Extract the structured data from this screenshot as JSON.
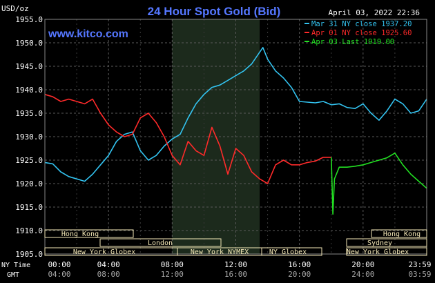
{
  "header": {
    "ylabel": "USD/oz",
    "title": "24 Hour Spot Gold (Bid)",
    "timestamp": "April 03, 2022 22:36",
    "watermark": "www.kitco.com"
  },
  "legend": [
    {
      "text": "Mar 31 NY close 1937.20",
      "color": "#33c3f0"
    },
    {
      "text": "Apr 01 NY close 1925.60",
      "color": "#ff2a2a"
    },
    {
      "text": "Apr 03 Last 1919.00",
      "color": "#22e022"
    }
  ],
  "axis": {
    "row1_label": "NY Time",
    "row2_label": "GMT",
    "ny_ticks": [
      "00:00",
      "04:00",
      "08:00",
      "12:00",
      "16:00",
      "20:00",
      "23:59"
    ],
    "gmt_ticks": [
      "04:00",
      "08:00",
      "12:00",
      "16:00",
      "20:00",
      "24:00",
      "03:59"
    ]
  },
  "markets": {
    "hong_kong_left": "Hong Kong",
    "london": "London",
    "new_york_globex_left": "New York Globex",
    "new_york_nymex": "New York NYMEX",
    "ny_globex": "NY Globex",
    "hong_kong_right": "Hong Kong",
    "sydney": "Sydney",
    "new_york_globex_right": "New York Globex"
  },
  "colors": {
    "background": "#000000",
    "plot": "#000000",
    "grid": "#5a5a5a",
    "shade": "#1c2a1c",
    "title": "#5577ff",
    "session_box": "#f5e9b8"
  },
  "chart_data": {
    "type": "line",
    "title": "24 Hour Spot Gold (Bid)",
    "ylabel": "USD/oz",
    "xlabel": "NY Time",
    "x_unit": "hours (NY time)",
    "xlim": [
      0,
      24
    ],
    "ylim": [
      1905,
      1955
    ],
    "yticks": [
      1905,
      1910,
      1915,
      1920,
      1925,
      1930,
      1935,
      1940,
      1945,
      1950,
      1955
    ],
    "grid": true,
    "legend_position": "top-right",
    "shaded_session": [
      8,
      13.5
    ],
    "series": [
      {
        "name": "Mar 31 NY close 1937.20",
        "color": "#33c3f0",
        "points": [
          [
            0,
            1924.5
          ],
          [
            0.5,
            1924.2
          ],
          [
            1,
            1922.5
          ],
          [
            1.5,
            1921.5
          ],
          [
            2,
            1921
          ],
          [
            2.5,
            1920.5
          ],
          [
            3,
            1922
          ],
          [
            3.5,
            1924
          ],
          [
            4,
            1926
          ],
          [
            4.5,
            1929
          ],
          [
            5,
            1930.5
          ],
          [
            5.5,
            1931
          ],
          [
            6,
            1927
          ],
          [
            6.5,
            1925
          ],
          [
            7,
            1926
          ],
          [
            7.5,
            1928
          ],
          [
            8,
            1929.5
          ],
          [
            8.5,
            1930.5
          ],
          [
            9,
            1934
          ],
          [
            9.5,
            1937
          ],
          [
            10,
            1939
          ],
          [
            10.5,
            1940.5
          ],
          [
            11,
            1941
          ],
          [
            11.5,
            1942
          ],
          [
            12,
            1943
          ],
          [
            12.5,
            1944
          ],
          [
            13,
            1945.5
          ],
          [
            13.5,
            1948
          ],
          [
            13.7,
            1949
          ],
          [
            14,
            1946.5
          ],
          [
            14.5,
            1944
          ],
          [
            15,
            1942.5
          ],
          [
            15.5,
            1940.5
          ],
          [
            16,
            1937.5
          ],
          [
            17,
            1937.2
          ],
          [
            17.5,
            1937.5
          ],
          [
            18,
            1936.8
          ],
          [
            18.5,
            1937
          ],
          [
            19,
            1936.2
          ],
          [
            19.5,
            1936
          ],
          [
            20,
            1937
          ],
          [
            20.5,
            1935
          ],
          [
            21,
            1933.5
          ],
          [
            21.5,
            1935.5
          ],
          [
            22,
            1938
          ],
          [
            22.5,
            1937
          ],
          [
            23,
            1935
          ],
          [
            23.5,
            1935.5
          ],
          [
            24,
            1938
          ]
        ]
      },
      {
        "name": "Apr 01 NY close 1925.60",
        "color": "#ff2a2a",
        "points": [
          [
            0,
            1939
          ],
          [
            0.5,
            1938.5
          ],
          [
            1,
            1937.5
          ],
          [
            1.5,
            1938
          ],
          [
            2,
            1937.5
          ],
          [
            2.5,
            1937
          ],
          [
            3,
            1938
          ],
          [
            3.5,
            1935
          ],
          [
            4,
            1932.5
          ],
          [
            4.5,
            1931
          ],
          [
            5,
            1930
          ],
          [
            5.5,
            1930.5
          ],
          [
            6,
            1934
          ],
          [
            6.5,
            1935
          ],
          [
            7,
            1933
          ],
          [
            7.5,
            1930
          ],
          [
            8,
            1926
          ],
          [
            8.5,
            1924
          ],
          [
            9,
            1929
          ],
          [
            9.5,
            1927
          ],
          [
            10,
            1926
          ],
          [
            10.5,
            1932
          ],
          [
            11,
            1928
          ],
          [
            11.5,
            1922
          ],
          [
            12,
            1927.5
          ],
          [
            12.5,
            1926
          ],
          [
            13,
            1922.5
          ],
          [
            13.5,
            1921
          ],
          [
            14,
            1920
          ],
          [
            14.5,
            1924
          ],
          [
            15,
            1925
          ],
          [
            15.5,
            1924
          ],
          [
            16,
            1924
          ],
          [
            16.5,
            1924.5
          ],
          [
            17,
            1924.8
          ],
          [
            17.5,
            1925.6
          ],
          [
            18,
            1925.6
          ]
        ]
      },
      {
        "name": "Apr 03 Last 1919.00",
        "color": "#22e022",
        "points": [
          [
            18,
            1925.6
          ],
          [
            18.1,
            1913.5
          ],
          [
            18.2,
            1921
          ],
          [
            18.5,
            1923.5
          ],
          [
            19,
            1923.5
          ],
          [
            19.5,
            1923.7
          ],
          [
            20,
            1924
          ],
          [
            20.5,
            1924.5
          ],
          [
            21,
            1925
          ],
          [
            21.5,
            1925.5
          ],
          [
            22,
            1926.5
          ],
          [
            22.5,
            1924
          ],
          [
            23,
            1922
          ],
          [
            23.5,
            1920.5
          ],
          [
            24,
            1919
          ]
        ]
      }
    ]
  }
}
